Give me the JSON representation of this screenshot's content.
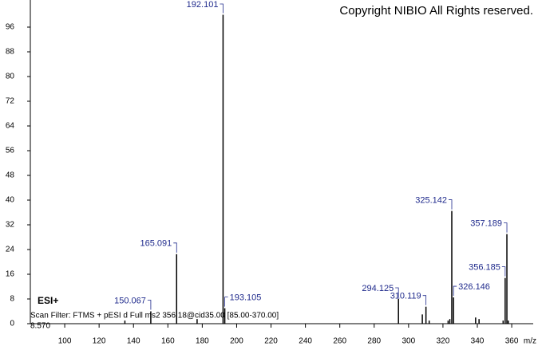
{
  "chart_data": {
    "type": "spectrum",
    "title": "Copyright NIBIO All Rights reserved.",
    "ionization": "ESI+",
    "scan_filter": "Scan Filter: FTMS + pESI d Full ms2 356.18@cid35.00 [85.00-370.00]",
    "retention": "8.570",
    "x_label": "m/z",
    "xlim": [
      80,
      372.5
    ],
    "xticks": [
      100,
      120,
      140,
      160,
      180,
      200,
      220,
      240,
      260,
      280,
      300,
      320,
      340,
      360
    ],
    "ylim": [
      0,
      104
    ],
    "yticks": [
      0,
      8,
      16,
      24,
      32,
      40,
      48,
      56,
      64,
      72,
      80,
      88,
      96
    ],
    "color": "#000000",
    "label_color": "#1f2a8c",
    "peaks": {
      "x": [
        150.067,
        165.091,
        192.101,
        193.105,
        294.125,
        310.119,
        325.142,
        326.146,
        356.185,
        357.189
      ],
      "values": [
        4,
        22.5,
        100,
        5,
        8,
        5.5,
        36.5,
        8.5,
        14.8,
        29
      ]
    },
    "minor_peaks": {
      "x": [
        135,
        177,
        308,
        312,
        323,
        324,
        339,
        341,
        355,
        358
      ],
      "values": [
        1,
        1.5,
        3,
        1,
        1,
        1.5,
        2,
        1.5,
        1,
        1
      ]
    }
  }
}
